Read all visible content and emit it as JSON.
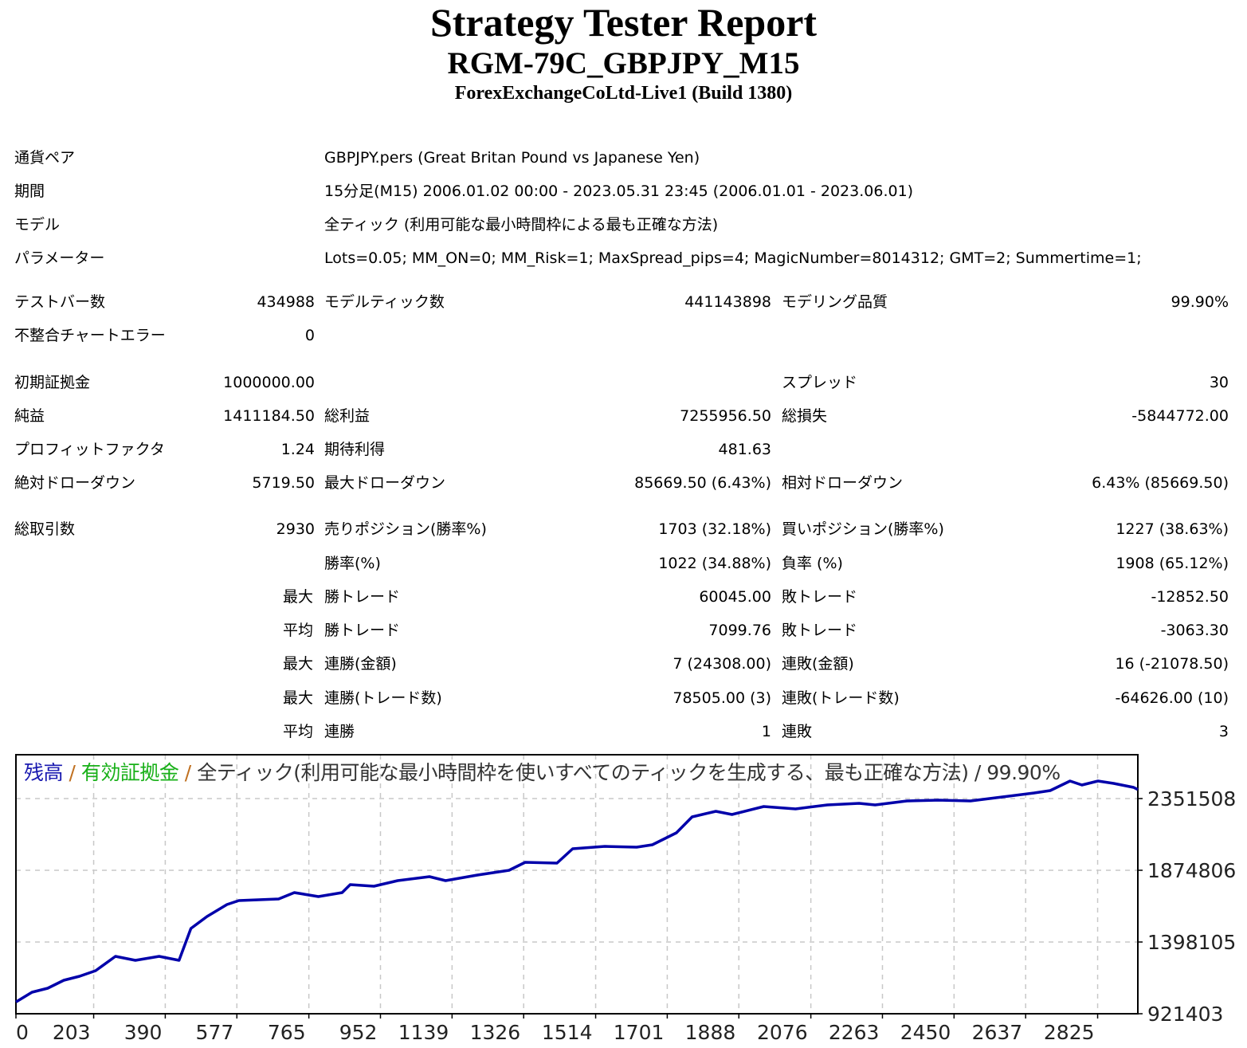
{
  "header": {
    "title": "Strategy Tester Report",
    "subtitle": "RGM-79C_GBPJPY_M15",
    "server": "ForexExchangeCoLtd-Live1 (Build 1380)"
  },
  "info": [
    {
      "label": "通貨ペア",
      "value": "GBPJPY.pers (Great Britan Pound vs Japanese Yen)"
    },
    {
      "label": "期間",
      "value": "15分足(M15) 2006.01.02 00:00 - 2023.05.31 23:45 (2006.01.01 - 2023.06.01)"
    },
    {
      "label": "モデル",
      "value": "全ティック (利用可能な最小時間枠による最も正確な方法)"
    },
    {
      "label": "パラメーター",
      "value": "Lots=0.05; MM_ON=0; MM_Risk=1; MaxSpread_pips=4; MagicNumber=8014312; GMT=2; Summertime=1;"
    }
  ],
  "stats": {
    "bars_label": "テストバー数",
    "bars": "434988",
    "ticks_label": "モデルティック数",
    "ticks": "441143898",
    "quality_label": "モデリング品質",
    "quality": "99.90%",
    "mismatch_label": "不整合チャートエラー",
    "mismatch": "0",
    "deposit_label": "初期証拠金",
    "deposit": "1000000.00",
    "spread_label": "スプレッド",
    "spread": "30",
    "net_label": "純益",
    "net": "1411184.50",
    "gross_profit_label": "総利益",
    "gross_profit": "7255956.50",
    "gross_loss_label": "総損失",
    "gross_loss": "-5844772.00",
    "pf_label": "プロフィットファクタ",
    "pf": "1.24",
    "expected_label": "期待利得",
    "expected": "481.63",
    "abs_dd_label": "絶対ドローダウン",
    "abs_dd": "5719.50",
    "max_dd_label": "最大ドローダウン",
    "max_dd": "85669.50 (6.43%)",
    "rel_dd_label": "相対ドローダウン",
    "rel_dd": "6.43% (85669.50)",
    "trades_label": "総取引数",
    "trades": "2930",
    "short_label": "売りポジション(勝率%)",
    "short": "1703 (32.18%)",
    "long_label": "買いポジション(勝率%)",
    "long": "1227 (38.63%)",
    "win_label": "勝率(%)",
    "win": "1022 (34.88%)",
    "loss_label": "負率 (%)",
    "loss": "1908 (65.12%)",
    "max_prefix": "最大",
    "avg_prefix": "平均",
    "largest_win_label": "勝トレード",
    "largest_win": "60045.00",
    "largest_loss_label": "敗トレード",
    "largest_loss": "-12852.50",
    "avg_win_label": "勝トレード",
    "avg_win": "7099.76",
    "avg_loss_label": "敗トレード",
    "avg_loss": "-3063.30",
    "max_cons_wins_label": "連勝(金額)",
    "max_cons_wins": "7 (24308.00)",
    "max_cons_losses_label": "連敗(金額)",
    "max_cons_losses": "16 (-21078.50)",
    "max_cons_profit_label": "連勝(トレード数)",
    "max_cons_profit": "78505.00 (3)",
    "max_cons_loss_label": "連敗(トレード数)",
    "max_cons_loss": "-64626.00 (10)",
    "avg_cons_wins_label": "連勝",
    "avg_cons_wins": "1",
    "avg_cons_losses_label": "連敗",
    "avg_cons_losses": "3"
  },
  "chart_data": {
    "type": "line",
    "legend": {
      "balance": "残高",
      "sep1": " / ",
      "equity": "有効証拠金",
      "sep2": " / ",
      "model": "全ティック(利用可能な最小時間枠を使いすべてのティックを生成する、最も正確な方法) / 99.90%"
    },
    "colors": {
      "balance": "#0000aa",
      "grid": "#c8c8c8",
      "frame": "#000000"
    },
    "xlim": [
      0,
      2930
    ],
    "ylim": [
      921403,
      2642830
    ],
    "x_ticks": [
      0,
      203,
      390,
      577,
      765,
      952,
      1139,
      1326,
      1514,
      1701,
      1888,
      2076,
      2263,
      2450,
      2637,
      2825
    ],
    "y_ticks": [
      921403,
      1398105,
      1874806,
      2351508
    ],
    "series": [
      {
        "name": "残高",
        "x": [
          0,
          42,
          83,
          125,
          166,
          208,
          260,
          312,
          374,
          426,
          457,
          499,
          551,
          582,
          686,
          727,
          790,
          852,
          873,
          935,
          997,
          1080,
          1122,
          1205,
          1288,
          1330,
          1413,
          1454,
          1538,
          1621,
          1662,
          1725,
          1766,
          1828,
          1870,
          1953,
          2036,
          2119,
          2202,
          2244,
          2327,
          2410,
          2493,
          2576,
          2659,
          2701,
          2753,
          2784,
          2826,
          2867,
          2919,
          2930
        ],
        "y": [
          1000000,
          1064414,
          1090897,
          1143864,
          1170348,
          1207425,
          1302766,
          1276282,
          1302766,
          1276282,
          1488150,
          1567600,
          1647050,
          1673534,
          1684127,
          1726500,
          1700017,
          1726500,
          1779467,
          1768874,
          1805951,
          1832434,
          1805951,
          1843028,
          1874808,
          1927775,
          1922479,
          2017820,
          2033710,
          2028414,
          2044304,
          2123754,
          2229688,
          2266765,
          2245578,
          2298545,
          2282655,
          2309138,
          2319732,
          2309138,
          2335622,
          2340918,
          2335622,
          2362105,
          2388589,
          2404479,
          2468039,
          2441556,
          2468039,
          2452149,
          2425665,
          2411185
        ]
      }
    ]
  }
}
